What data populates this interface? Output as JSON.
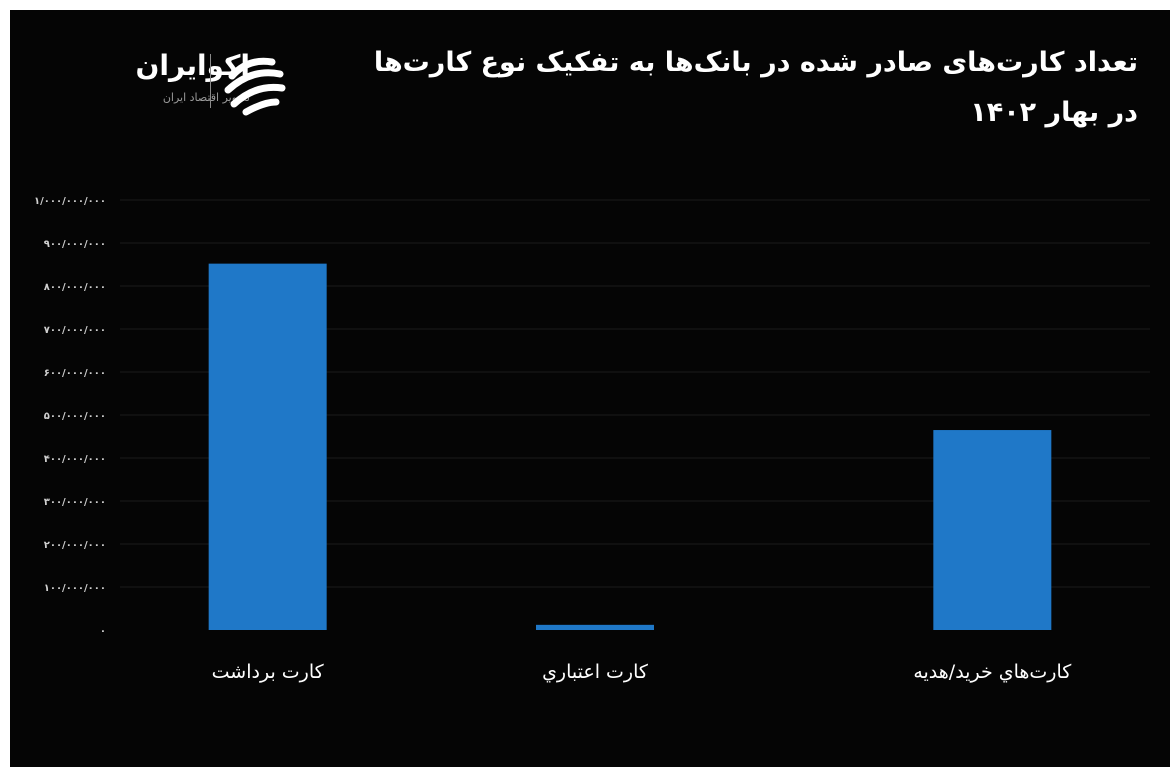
{
  "header": {
    "title": "تعداد کارت‌های صادر شده در بانک‌ها به تفکیک نوع کارت‌ها در بهار ۱۴۰۲"
  },
  "logo": {
    "name": "اکوایران",
    "tagline": "تصویر اقتصاد ایران",
    "icon": "ecoiran-logo-icon"
  },
  "colors": {
    "background": "#050505",
    "bar": "#1f78c8",
    "text": "#ffffff",
    "tick_text": "#d0d0d0",
    "grid": "#1a1a1a"
  },
  "chart_data": {
    "type": "bar",
    "title": "تعداد کارت‌های صادر شده در بانک‌ها به تفکیک نوع کارت‌ها در بهار ۱۴۰۲",
    "xlabel": "",
    "ylabel": "",
    "categories": [
      "کارت برداشت",
      "کارت اعتباري",
      "کارت‌هاي خريد/هديه"
    ],
    "values": [
      852000000,
      12000000,
      465000000
    ],
    "ylim": [
      0,
      1000000000
    ],
    "yticks": [
      0,
      100000000,
      200000000,
      300000000,
      400000000,
      500000000,
      600000000,
      700000000,
      800000000,
      900000000,
      1000000000
    ],
    "ytick_labels": [
      "۰",
      "۱۰۰/۰۰۰/۰۰۰",
      "۲۰۰/۰۰۰/۰۰۰",
      "۳۰۰/۰۰۰/۰۰۰",
      "۴۰۰/۰۰۰/۰۰۰",
      "۵۰۰/۰۰۰/۰۰۰",
      "۶۰۰/۰۰۰/۰۰۰",
      "۷۰۰/۰۰۰/۰۰۰",
      "۸۰۰/۰۰۰/۰۰۰",
      "۹۰۰/۰۰۰/۰۰۰",
      "۱/۰۰۰/۰۰۰/۰۰۰"
    ],
    "grid": true,
    "legend": "none"
  }
}
